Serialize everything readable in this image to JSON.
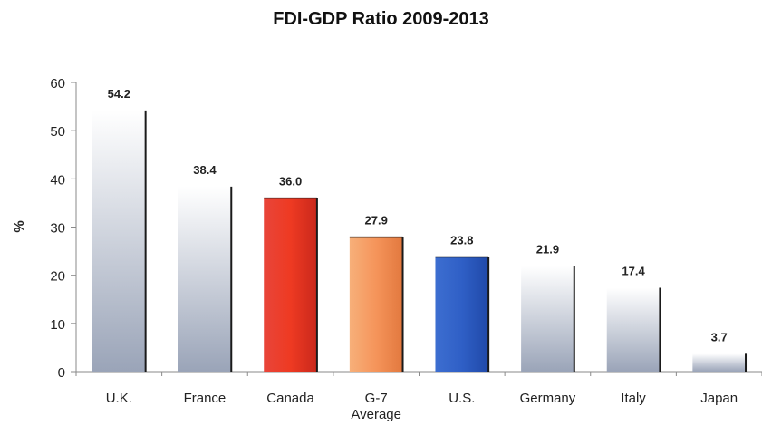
{
  "chart_data": {
    "type": "bar",
    "title": "FDI-GDP Ratio 2009-2013",
    "ylabel": "%",
    "xlabel": "",
    "ylim": [
      0,
      60
    ],
    "yticks": [
      0,
      10,
      20,
      30,
      40,
      50,
      60
    ],
    "categories": [
      {
        "label": "U.K.",
        "label_lines": [
          "U.K."
        ],
        "value": 54.2,
        "value_label": "54.2",
        "style": "grey",
        "label_color": "#222222"
      },
      {
        "label": "France",
        "label_lines": [
          "France"
        ],
        "value": 38.4,
        "value_label": "38.4",
        "style": "grey",
        "label_color": "#222222"
      },
      {
        "label": "Canada",
        "label_lines": [
          "Canada"
        ],
        "value": 36.0,
        "value_label": "36.0",
        "style": "red",
        "label_color": "#c0392b"
      },
      {
        "label": "G-7 Average",
        "label_lines": [
          "G-7",
          "Average"
        ],
        "value": 27.9,
        "value_label": "27.9",
        "style": "orange",
        "label_color": "#222222"
      },
      {
        "label": "U.S.",
        "label_lines": [
          "U.S."
        ],
        "value": 23.8,
        "value_label": "23.8",
        "style": "blue",
        "label_color": "#222222"
      },
      {
        "label": "Germany",
        "label_lines": [
          "Germany"
        ],
        "value": 21.9,
        "value_label": "21.9",
        "style": "grey",
        "label_color": "#222222"
      },
      {
        "label": "Italy",
        "label_lines": [
          "Italy"
        ],
        "value": 17.4,
        "value_label": "17.4",
        "style": "grey",
        "label_color": "#222222"
      },
      {
        "label": "Japan",
        "label_lines": [
          "Japan"
        ],
        "value": 3.7,
        "value_label": "3.7",
        "style": "grey",
        "label_color": "#222222"
      }
    ],
    "grid": false,
    "legend": "none"
  }
}
